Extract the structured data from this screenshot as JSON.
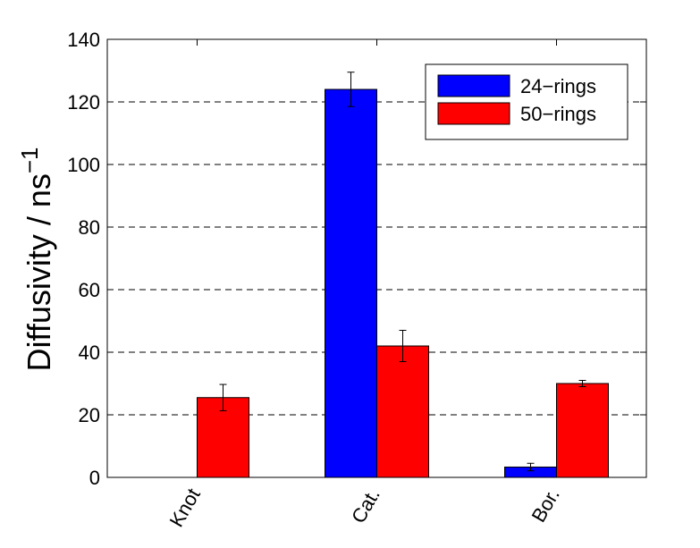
{
  "chart_data": {
    "type": "bar",
    "title": "",
    "xlabel": "",
    "ylabel": "Diffusivity / ns",
    "ylabel_superscript": "−1",
    "categories": [
      "Knot",
      "Cat.",
      "Bor."
    ],
    "ylim": [
      0,
      140
    ],
    "yticks": [
      0,
      20,
      40,
      60,
      80,
      100,
      120,
      140
    ],
    "grid": "horizontal-dashed",
    "legend_position": "top-right",
    "series": [
      {
        "name": "24−rings",
        "color": "#0000ff",
        "values": [
          0,
          124,
          3.3
        ],
        "errors": [
          0,
          5.5,
          1.2
        ]
      },
      {
        "name": "50−rings",
        "color": "#ff0000",
        "values": [
          25.5,
          42,
          30
        ],
        "errors": [
          4.2,
          5,
          1
        ]
      }
    ]
  }
}
